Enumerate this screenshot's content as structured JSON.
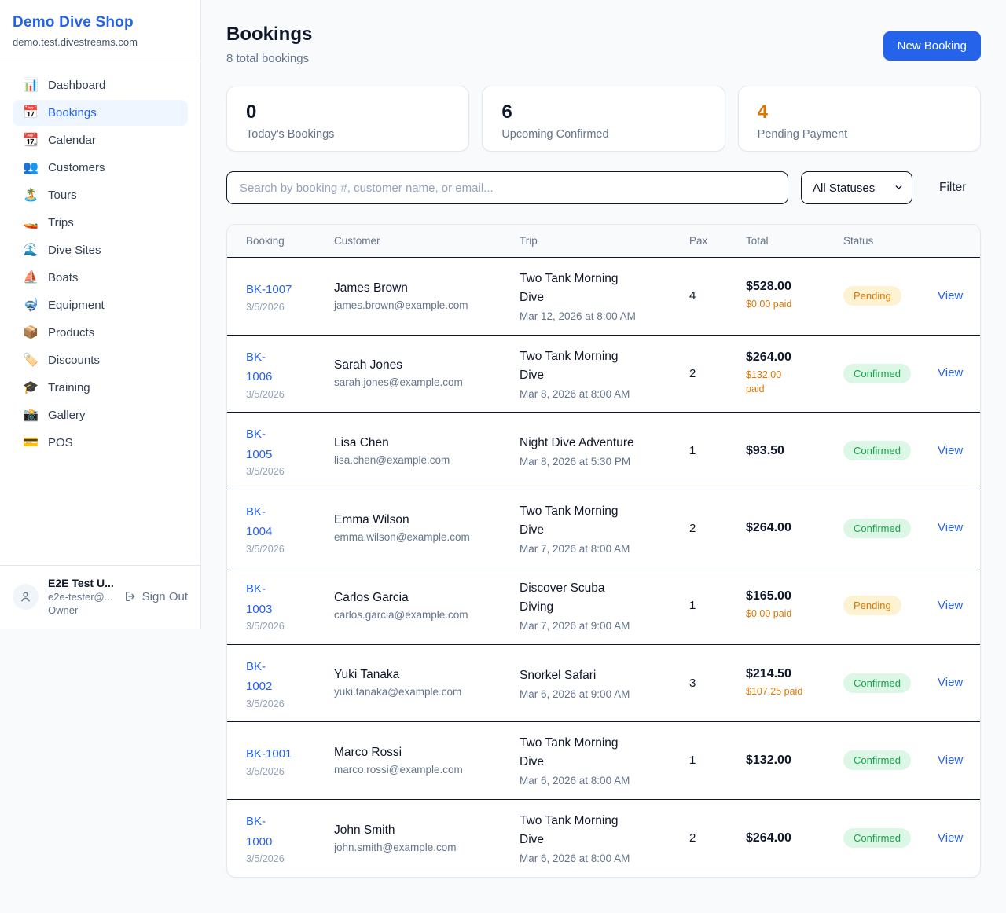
{
  "app": {
    "name": "Demo Dive Shop",
    "domain": "demo.test.divestreams.com"
  },
  "sidebar": {
    "items": [
      {
        "icon": "📊",
        "icon_name": "bar-chart-icon",
        "label": "Dashboard",
        "active": false
      },
      {
        "icon": "📅",
        "icon_name": "calendar-icon",
        "label": "Bookings",
        "active": true
      },
      {
        "icon": "📆",
        "icon_name": "tear-off-calendar-icon",
        "label": "Calendar",
        "active": false
      },
      {
        "icon": "👥",
        "icon_name": "people-icon",
        "label": "Customers",
        "active": false
      },
      {
        "icon": "🏝️",
        "icon_name": "island-icon",
        "label": "Tours",
        "active": false
      },
      {
        "icon": "🚤",
        "icon_name": "speedboat-icon",
        "label": "Trips",
        "active": false
      },
      {
        "icon": "🌊",
        "icon_name": "wave-icon",
        "label": "Dive Sites",
        "active": false
      },
      {
        "icon": "⛵",
        "icon_name": "sailboat-icon",
        "label": "Boats",
        "active": false
      },
      {
        "icon": "🤿",
        "icon_name": "diving-mask-icon",
        "label": "Equipment",
        "active": false
      },
      {
        "icon": "📦",
        "icon_name": "package-icon",
        "label": "Products",
        "active": false
      },
      {
        "icon": "🏷️",
        "icon_name": "tag-icon",
        "label": "Discounts",
        "active": false
      },
      {
        "icon": "🎓",
        "icon_name": "graduation-cap-icon",
        "label": "Training",
        "active": false
      },
      {
        "icon": "📸",
        "icon_name": "camera-icon",
        "label": "Gallery",
        "active": false
      },
      {
        "icon": "💳",
        "icon_name": "credit-card-icon",
        "label": "POS",
        "active": false
      }
    ],
    "user": {
      "name": "E2E Test U...",
      "email": "e2e-tester@...",
      "role": "Owner",
      "sign_out_label": "Sign Out"
    }
  },
  "header": {
    "title": "Bookings",
    "subtitle": "8 total bookings",
    "new_booking_label": "New Booking"
  },
  "stats": [
    {
      "value": "0",
      "label": "Today's Bookings",
      "value_color": "#0f172a"
    },
    {
      "value": "6",
      "label": "Upcoming Confirmed",
      "value_color": "#0f172a"
    },
    {
      "value": "4",
      "label": "Pending Payment",
      "value_color": "#d97706"
    }
  ],
  "controls": {
    "search_placeholder": "Search by booking #, customer name, or email...",
    "status_filter": "All Statuses",
    "filter_label": "Filter"
  },
  "table": {
    "columns": [
      "Booking",
      "Customer",
      "Trip",
      "Pax",
      "Total",
      "Status"
    ],
    "rows": [
      {
        "id": "BK-1007",
        "date": "3/5/2026",
        "customer": "James Brown",
        "email": "james.brown@example.com",
        "trip": "Two Tank Morning\nDive",
        "trip_date": "Mar 12, 2026 at 8:00 AM",
        "pax": "4",
        "total": "$528.00",
        "paid": "$0.00 paid",
        "status": "Pending",
        "view_label": "View"
      },
      {
        "id": "BK-\n1006",
        "date": "3/5/2026",
        "customer": "Sarah Jones",
        "email": "sarah.jones@example.com",
        "trip": "Two Tank Morning\nDive",
        "trip_date": "Mar 8, 2026 at 8:00 AM",
        "pax": "2",
        "total": "$264.00",
        "paid": "$132.00\npaid",
        "status": "Confirmed",
        "view_label": "View"
      },
      {
        "id": "BK-\n1005",
        "date": "3/5/2026",
        "customer": "Lisa Chen",
        "email": "lisa.chen@example.com",
        "trip": "Night Dive Adventure",
        "trip_date": "Mar 8, 2026 at 5:30 PM",
        "pax": "1",
        "total": "$93.50",
        "paid": null,
        "status": "Confirmed",
        "view_label": "View"
      },
      {
        "id": "BK-\n1004",
        "date": "3/5/2026",
        "customer": "Emma Wilson",
        "email": "emma.wilson@example.com",
        "trip": "Two Tank Morning\nDive",
        "trip_date": "Mar 7, 2026 at 8:00 AM",
        "pax": "2",
        "total": "$264.00",
        "paid": null,
        "status": "Confirmed",
        "view_label": "View"
      },
      {
        "id": "BK-\n1003",
        "date": "3/5/2026",
        "customer": "Carlos Garcia",
        "email": "carlos.garcia@example.com",
        "trip": "Discover Scuba\nDiving",
        "trip_date": "Mar 7, 2026 at 9:00 AM",
        "pax": "1",
        "total": "$165.00",
        "paid": "$0.00 paid",
        "status": "Pending",
        "view_label": "View"
      },
      {
        "id": "BK-\n1002",
        "date": "3/5/2026",
        "customer": "Yuki Tanaka",
        "email": "yuki.tanaka@example.com",
        "trip": "Snorkel Safari",
        "trip_date": "Mar 6, 2026 at 9:00 AM",
        "pax": "3",
        "total": "$214.50",
        "paid": "$107.25 paid",
        "status": "Confirmed",
        "view_label": "View"
      },
      {
        "id": "BK-1001",
        "date": "3/5/2026",
        "customer": "Marco Rossi",
        "email": "marco.rossi@example.com",
        "trip": "Two Tank Morning\nDive",
        "trip_date": "Mar 6, 2026 at 8:00 AM",
        "pax": "1",
        "total": "$132.00",
        "paid": null,
        "status": "Confirmed",
        "view_label": "View"
      },
      {
        "id": "BK-\n1000",
        "date": "3/5/2026",
        "customer": "John Smith",
        "email": "john.smith@example.com",
        "trip": "Two Tank Morning\nDive",
        "trip_date": "Mar 6, 2026 at 8:00 AM",
        "pax": "2",
        "total": "$264.00",
        "paid": null,
        "status": "Confirmed",
        "view_label": "View"
      }
    ]
  },
  "colors": {
    "accent": "#2563eb",
    "active_item_bg": "#eff6ff",
    "pending_text": "#d97706",
    "pending_bg": "#fdf3d3",
    "confirmed_text": "#16a34a",
    "confirmed_bg": "#ddf7e7",
    "dark_border": "#0f172a",
    "light_border": "#e2e8f0",
    "page_bg": "#f8fafc"
  }
}
